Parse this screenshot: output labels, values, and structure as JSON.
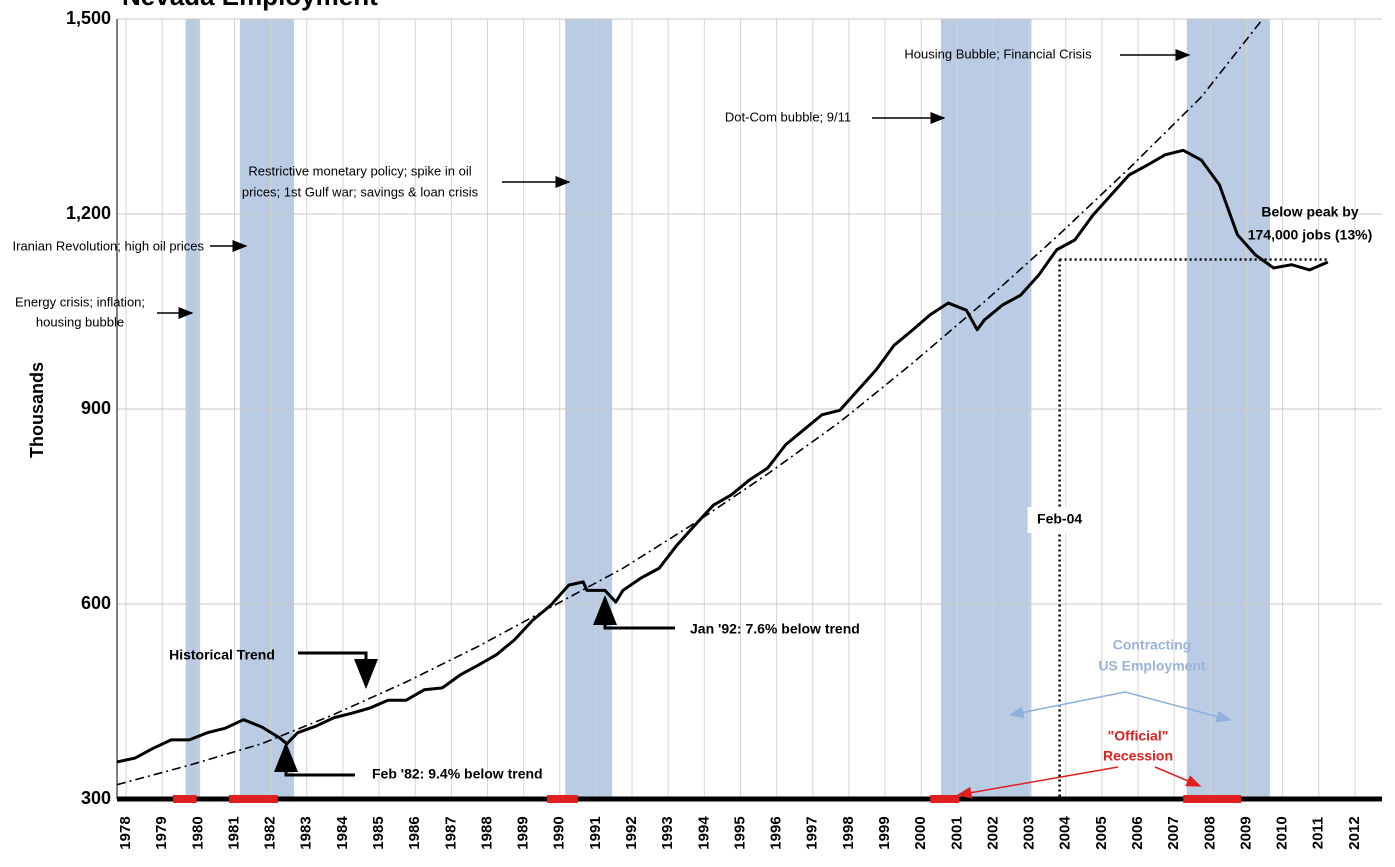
{
  "chart_data": {
    "type": "line",
    "title": "Nevada Employment",
    "ylabel": "Thousands",
    "xlim": [
      1978,
      2013
    ],
    "ylim": [
      300,
      1500
    ],
    "yticks": [
      300,
      600,
      900,
      {
        "value": 1200,
        "label": "1,200"
      },
      {
        "value": 1500,
        "label": "1,500"
      }
    ],
    "xticks": [
      {
        "value": 1978.25,
        "label": "1978"
      },
      {
        "value": 1979.25,
        "label": "1979"
      },
      {
        "value": 1980.25,
        "label": "1980"
      },
      {
        "value": 1981.25,
        "label": "1981"
      },
      {
        "value": 1982.25,
        "label": "1982"
      },
      {
        "value": 1983.25,
        "label": "1983"
      },
      {
        "value": 1984.25,
        "label": "1984"
      },
      {
        "value": 1985.25,
        "label": "1985"
      },
      {
        "value": 1986.25,
        "label": "1986"
      },
      {
        "value": 1987.25,
        "label": "1987"
      },
      {
        "value": 1988.25,
        "label": "1988"
      },
      {
        "value": 1989.25,
        "label": "1989"
      },
      {
        "value": 1990.25,
        "label": "1990"
      },
      {
        "value": 1991.25,
        "label": "1991"
      },
      {
        "value": 1992.25,
        "label": "1992"
      },
      {
        "value": 1993.25,
        "label": "1993"
      },
      {
        "value": 1994.25,
        "label": "1994"
      },
      {
        "value": 1995.25,
        "label": "1995"
      },
      {
        "value": 1996.25,
        "label": "1996"
      },
      {
        "value": 1997.25,
        "label": "1997"
      },
      {
        "value": 1998.25,
        "label": "1998"
      },
      {
        "value": 1999.25,
        "label": "1999"
      },
      {
        "value": 2000.25,
        "label": "2000"
      },
      {
        "value": 2001.25,
        "label": "2001"
      },
      {
        "value": 2002.25,
        "label": "2002"
      },
      {
        "value": 2003.25,
        "label": "2003"
      },
      {
        "value": 2004.25,
        "label": "2004"
      },
      {
        "value": 2005.25,
        "label": "2005"
      },
      {
        "value": 2006.25,
        "label": "2006"
      },
      {
        "value": 2007.25,
        "label": "2007"
      },
      {
        "value": 2008.25,
        "label": "2008"
      },
      {
        "value": 2009.25,
        "label": "2009"
      },
      {
        "value": 2010.25,
        "label": "2010"
      },
      {
        "value": 2011.25,
        "label": "2011"
      },
      {
        "value": 2012.25,
        "label": "2012"
      }
    ],
    "grid": true,
    "contracting_periods": [
      [
        1979.9,
        1980.3
      ],
      [
        1981.4,
        1982.9
      ],
      [
        1990.4,
        1991.7
      ],
      [
        2000.8,
        2003.3
      ],
      [
        2007.6,
        2009.9
      ]
    ],
    "contracting_color": "#b9cce4",
    "official_recessions": [
      [
        1979.55,
        1980.2
      ],
      [
        1981.1,
        1982.45
      ],
      [
        1989.9,
        1990.75
      ],
      [
        2000.5,
        2001.3
      ],
      [
        2007.5,
        2009.1
      ]
    ],
    "recession_color": "#e02020",
    "series": [
      {
        "color": "#000000",
        "style": "solid",
        "x": [
          1978,
          1978.5,
          1979,
          1979.5,
          1980,
          1980.5,
          1981,
          1981.5,
          1982,
          1982.5,
          1982.7,
          1983,
          1983.5,
          1984,
          1984.5,
          1985,
          1985.5,
          1986,
          1986.5,
          1987,
          1987.5,
          1988,
          1988.5,
          1989,
          1989.5,
          1990,
          1990.5,
          1990.9,
          1991,
          1991.5,
          1991.8,
          1992,
          1992.5,
          1993,
          1993.5,
          1994,
          1994.5,
          1995,
          1995.5,
          1996,
          1996.5,
          1997,
          1997.5,
          1998,
          1998.5,
          1999,
          1999.5,
          2000,
          2000.5,
          2001,
          2001.5,
          2001.8,
          2002,
          2002.5,
          2003,
          2003.5,
          2004,
          2004.5,
          2005,
          2005.5,
          2006,
          2006.5,
          2007,
          2007.5,
          2008,
          2008.5,
          2009,
          2009.5,
          2010,
          2010.5,
          2011,
          2011.5
        ],
        "values": [
          357,
          363,
          378,
          391,
          391,
          402,
          409,
          422,
          411,
          394,
          385,
          402,
          412,
          425,
          432,
          440,
          452,
          452,
          468,
          471,
          491,
          506,
          522,
          545,
          575,
          598,
          629,
          634,
          621,
          621,
          603,
          621,
          640,
          655,
          691,
          722,
          752,
          768,
          791,
          809,
          845,
          868,
          891,
          898,
          929,
          960,
          998,
          1021,
          1045,
          1063,
          1052,
          1022,
          1037,
          1060,
          1075,
          1106,
          1145,
          1160,
          1198,
          1229,
          1260,
          1275,
          1291,
          1298,
          1283,
          1245,
          1168,
          1137,
          1117,
          1122,
          1114,
          1126
        ]
      },
      {
        "color": "#000000",
        "style": "dash-dot",
        "x": [
          1978,
          1980,
          1982,
          1984,
          1986,
          1988,
          1990,
          1992,
          1994,
          1996,
          1998,
          2000,
          2002,
          2004,
          2006,
          2008,
          2009.7
        ],
        "values": [
          322,
          352,
          385,
          430,
          480,
          535,
          595,
          655,
          725,
          800,
          880,
          970,
          1065,
          1165,
          1270,
          1380,
          1500
        ]
      }
    ],
    "reference_x": 2004.08,
    "reference_y": 1130,
    "reference_label": "Feb-04",
    "annotations": [
      [
        "Energy crisis; inflation;",
        "housing bubble"
      ],
      [
        "Iranian Revolution; high oil prices"
      ],
      [
        "Restrictive monetary policy;  spike in oil",
        "prices; 1st Gulf war; savings & loan crisis"
      ],
      [
        "Dot-Com bubble; 9/11"
      ],
      [
        "Housing Bubble; Financial Crisis"
      ],
      [
        "Historical Trend"
      ],
      [
        "Jan '92: 7.6% below trend"
      ],
      [
        "Feb '82: 9.4% below trend"
      ],
      [
        "Below peak by",
        "174,000 jobs (13%)"
      ],
      [
        "Contracting",
        "US Employment"
      ],
      [
        "\"Official\"",
        "Recession"
      ]
    ]
  }
}
